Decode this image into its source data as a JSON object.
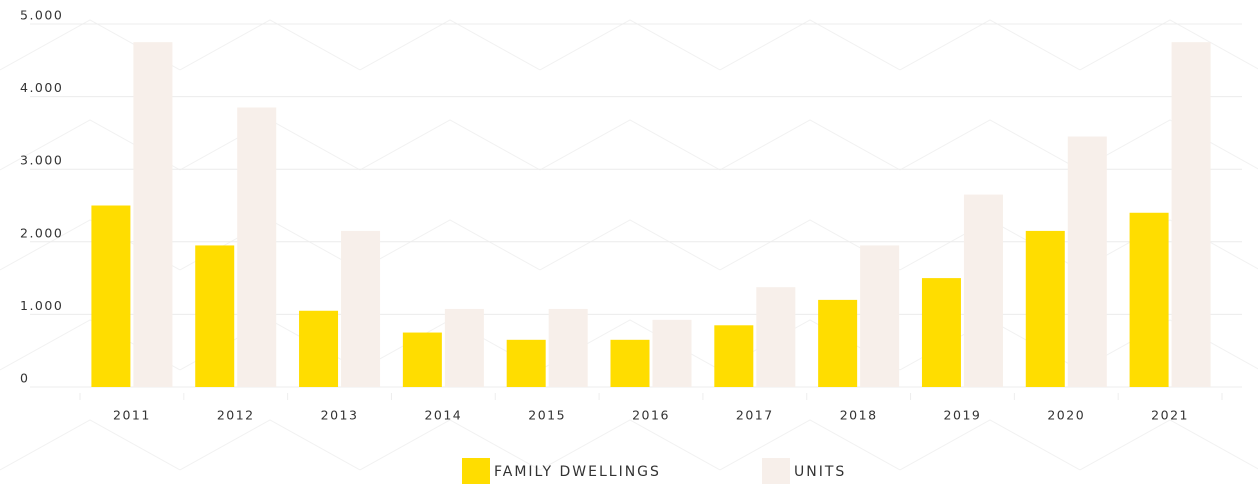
{
  "chart_data": {
    "type": "bar",
    "categories": [
      "2011",
      "2012",
      "2013",
      "2014",
      "2015",
      "2016",
      "2017",
      "2018",
      "2019",
      "2020",
      "2021"
    ],
    "series": [
      {
        "name": "FAMILY DWELLINGS",
        "color": "#ffdd00",
        "values": [
          2500,
          1950,
          1050,
          750,
          650,
          650,
          850,
          1200,
          1500,
          2150,
          2400
        ]
      },
      {
        "name": "UNITS",
        "color": "#f7efea",
        "values": [
          4750,
          3850,
          2150,
          1075,
          1075,
          925,
          1375,
          1950,
          2650,
          3450,
          4750
        ]
      }
    ],
    "ylim": [
      0,
      5000
    ],
    "yticks": [
      0,
      {
        "value": 1000,
        "label": "1.000"
      },
      {
        "value": 2000,
        "label": "2.000"
      },
      {
        "value": 3000,
        "label": "3.000"
      },
      {
        "value": 4000,
        "label": "4.000"
      },
      {
        "value": 5000,
        "label": "5.000"
      }
    ],
    "grid": true,
    "legend": "bottom"
  }
}
